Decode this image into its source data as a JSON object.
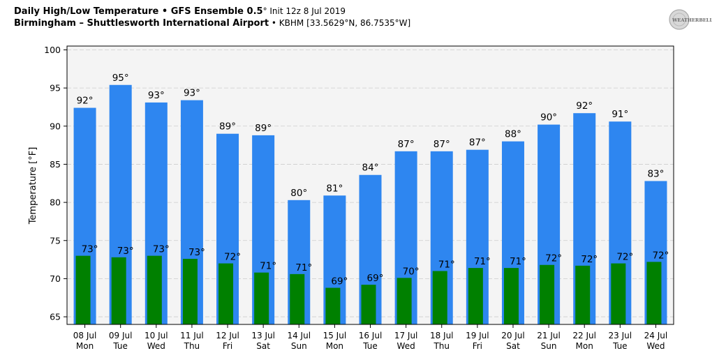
{
  "header": {
    "title_bold": "Daily High/Low Temperature • GFS Ensemble 0.5",
    "title_deg": "°",
    "title_init": " Init 12z 8 Jul 2019",
    "subtitle_bold": "Birmingham – Shuttlesworth International Airport",
    "subtitle_rest": " • KBHM [33.5629°N, 86.7535°W]"
  },
  "logo": {
    "text": "WEATHERBELL",
    "icon": "weatherbell-logo"
  },
  "colors": {
    "high": "#2e86f0",
    "low": "#008000",
    "plot_bg": "#f4f4f4"
  },
  "chart_data": {
    "type": "bar",
    "ylabel": "Temperature [°F]",
    "ylim": [
      64,
      100.5
    ],
    "yticks": [
      65,
      70,
      75,
      80,
      85,
      90,
      95,
      100
    ],
    "grid": true,
    "categories": [
      {
        "date": "08 Jul",
        "day": "Mon"
      },
      {
        "date": "09 Jul",
        "day": "Tue"
      },
      {
        "date": "10 Jul",
        "day": "Wed"
      },
      {
        "date": "11 Jul",
        "day": "Thu"
      },
      {
        "date": "12 Jul",
        "day": "Fri"
      },
      {
        "date": "13 Jul",
        "day": "Sat"
      },
      {
        "date": "14 Jul",
        "day": "Sun"
      },
      {
        "date": "15 Jul",
        "day": "Mon"
      },
      {
        "date": "16 Jul",
        "day": "Tue"
      },
      {
        "date": "17 Jul",
        "day": "Wed"
      },
      {
        "date": "18 Jul",
        "day": "Thu"
      },
      {
        "date": "19 Jul",
        "day": "Fri"
      },
      {
        "date": "20 Jul",
        "day": "Sat"
      },
      {
        "date": "21 Jul",
        "day": "Sun"
      },
      {
        "date": "22 Jul",
        "day": "Mon"
      },
      {
        "date": "23 Jul",
        "day": "Tue"
      },
      {
        "date": "24 Jul",
        "day": "Wed"
      }
    ],
    "series": [
      {
        "values": [
          92.4,
          95.4,
          93.1,
          93.4,
          89.0,
          88.8,
          80.3,
          80.9,
          83.6,
          86.7,
          86.7,
          86.9,
          88.0,
          90.2,
          91.7,
          90.6,
          82.8
        ],
        "labels": [
          "92°",
          "95°",
          "93°",
          "93°",
          "89°",
          "89°",
          "80°",
          "81°",
          "84°",
          "87°",
          "87°",
          "87°",
          "88°",
          "90°",
          "92°",
          "91°",
          "83°"
        ]
      },
      {
        "values": [
          73.0,
          72.8,
          73.0,
          72.6,
          72.0,
          70.8,
          70.6,
          68.8,
          69.2,
          70.1,
          71.0,
          71.4,
          71.4,
          71.8,
          71.7,
          72.0,
          72.2
        ],
        "labels": [
          "73°",
          "73°",
          "73°",
          "73°",
          "72°",
          "71°",
          "71°",
          "69°",
          "69°",
          "70°",
          "71°",
          "71°",
          "71°",
          "72°",
          "72°",
          "72°",
          "72°"
        ]
      }
    ]
  }
}
